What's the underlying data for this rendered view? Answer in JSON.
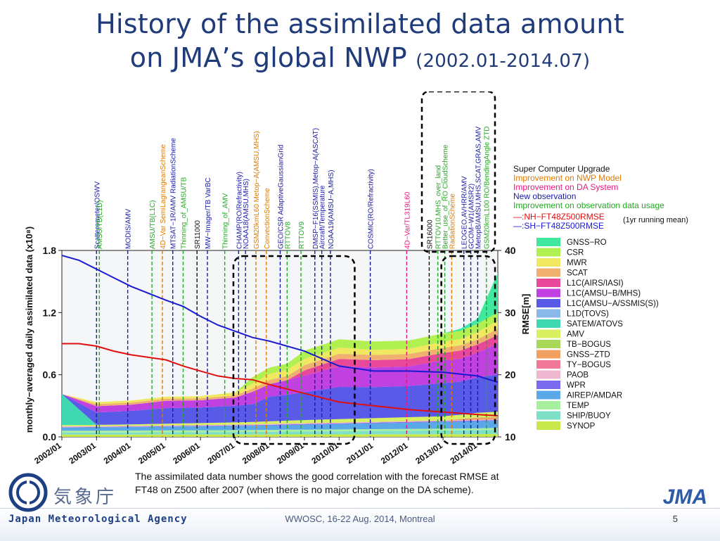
{
  "slide": {
    "title_line1": "History of the assimilated data amount",
    "title_line2": "on JMA’s global NWP",
    "title_period": "(2002.01-2014.07)",
    "caption_line1": "The assimilated data number shows the good correlation with the forecast RMSE at",
    "caption_line2": "FT48 on Z500 after 2007 (when there is no major change on the DA scheme).",
    "footer": "WWOSC, 16-22 Aug. 2014, Montreal",
    "page_number": "5",
    "agency_name": "Japan Meteorological Agency",
    "agency_kanji": "気象庁",
    "agency_short": "JMA"
  },
  "chart_data": {
    "type": "area",
    "ylabel": "monthly−averaged daily assimilated data (x10⁸)",
    "y2label": "RMSE[m]",
    "ylim": [
      0,
      1.8
    ],
    "y2lim": [
      10,
      40
    ],
    "yticks": [
      "0.0",
      "0.6",
      "1.2",
      "1.8"
    ],
    "y2ticks": [
      "10",
      "20",
      "30",
      "40"
    ],
    "xlim": [
      2002.0,
      2014.58
    ],
    "xticks": [
      {
        "x": 2002.0,
        "label": "2002/01"
      },
      {
        "x": 2003.0,
        "label": "2003/01"
      },
      {
        "x": 2004.0,
        "label": "2004/01"
      },
      {
        "x": 2005.0,
        "label": "2005/01"
      },
      {
        "x": 2006.0,
        "label": "2006/01"
      },
      {
        "x": 2007.0,
        "label": "2007/01"
      },
      {
        "x": 2008.0,
        "label": "2008/01"
      },
      {
        "x": 2009.0,
        "label": "2009/01"
      },
      {
        "x": 2010.0,
        "label": "2010/01"
      },
      {
        "x": 2011.0,
        "label": "2011/01"
      },
      {
        "x": 2012.0,
        "label": "2012/01"
      },
      {
        "x": 2013.0,
        "label": "2013/01"
      },
      {
        "x": 2014.0,
        "label": "2014/01"
      }
    ],
    "legend_top": [
      {
        "label": "Super Computer Upgrade",
        "color": "#111111"
      },
      {
        "label": "Improvement on NWP Model",
        "color": "#e07a00"
      },
      {
        "label": "Improvement on DA System",
        "color": "#e8187c"
      },
      {
        "label": "New observation",
        "color": "#1a1aa8"
      },
      {
        "label": "Improvement on observation data usage",
        "color": "#22a822"
      }
    ],
    "rmse_legend": [
      {
        "label": "—:NH−FT48Z500RMSE",
        "color": "#e01010"
      },
      {
        "label": "—:SH−FT48Z500RMSE",
        "color": "#1a1ad0"
      }
    ],
    "rmse_note": "(1yr running mean)",
    "x": [
      2002.0,
      2003.0,
      2004.0,
      2005.0,
      2006.0,
      2007.0,
      2007.5,
      2008.0,
      2008.5,
      2009.0,
      2009.5,
      2010.0,
      2011.0,
      2012.0,
      2013.0,
      2013.5,
      2014.0,
      2014.58
    ],
    "series": [
      {
        "name": "SYNOP",
        "color": "#c8e84a",
        "values": [
          0.022,
          0.022,
          0.022,
          0.023,
          0.023,
          0.023,
          0.023,
          0.023,
          0.024,
          0.024,
          0.024,
          0.024,
          0.025,
          0.025,
          0.026,
          0.026,
          0.027,
          0.028
        ]
      },
      {
        "name": "SHIP/BUOY",
        "color": "#7fe0c8",
        "values": [
          0.02,
          0.02,
          0.021,
          0.022,
          0.023,
          0.024,
          0.025,
          0.026,
          0.027,
          0.028,
          0.029,
          0.03,
          0.032,
          0.034,
          0.036,
          0.037,
          0.038,
          0.04
        ]
      },
      {
        "name": "TEMP",
        "color": "#a8f0a0",
        "values": [
          0.018,
          0.018,
          0.018,
          0.018,
          0.018,
          0.018,
          0.018,
          0.018,
          0.018,
          0.018,
          0.018,
          0.018,
          0.018,
          0.018,
          0.018,
          0.018,
          0.018,
          0.018
        ]
      },
      {
        "name": "AIREP/AMDAR",
        "color": "#5aa8e8",
        "values": [
          0.03,
          0.032,
          0.034,
          0.036,
          0.038,
          0.04,
          0.042,
          0.044,
          0.046,
          0.048,
          0.05,
          0.052,
          0.056,
          0.06,
          0.064,
          0.066,
          0.068,
          0.07
        ]
      },
      {
        "name": "WPR",
        "color": "#7a6af0",
        "values": [
          0.004,
          0.004,
          0.004,
          0.004,
          0.005,
          0.005,
          0.005,
          0.005,
          0.006,
          0.006,
          0.006,
          0.006,
          0.006,
          0.007,
          0.007,
          0.007,
          0.007,
          0.007
        ]
      },
      {
        "name": "PAOB",
        "color": "#f0b8d0",
        "values": [
          0.006,
          0.006,
          0.006,
          0.006,
          0.006,
          0.006,
          0.006,
          0.006,
          0.006,
          0.006,
          0.006,
          0.006,
          0.006,
          0.006,
          0.006,
          0.006,
          0.006,
          0.006
        ]
      },
      {
        "name": "TY−BOGUS",
        "color": "#f07898",
        "values": [
          0.002,
          0.002,
          0.002,
          0.002,
          0.002,
          0.002,
          0.002,
          0.002,
          0.002,
          0.002,
          0.002,
          0.002,
          0.002,
          0.002,
          0.002,
          0.002,
          0.002,
          0.002
        ]
      },
      {
        "name": "GNSS−ZTD",
        "color": "#f0a060",
        "values": [
          0.0,
          0.0,
          0.0,
          0.0,
          0.0,
          0.0,
          0.0,
          0.0,
          0.0,
          0.0,
          0.0,
          0.0,
          0.0,
          0.0,
          0.0,
          0.01,
          0.02,
          0.02
        ]
      },
      {
        "name": "TB−BOGUS",
        "color": "#a8d858",
        "values": [
          0.002,
          0.002,
          0.002,
          0.002,
          0.002,
          0.002,
          0.002,
          0.002,
          0.002,
          0.002,
          0.002,
          0.002,
          0.002,
          0.002,
          0.002,
          0.002,
          0.002,
          0.002
        ]
      },
      {
        "name": "AMV",
        "color": "#d8f060",
        "values": [
          0.01,
          0.01,
          0.012,
          0.015,
          0.016,
          0.02,
          0.022,
          0.024,
          0.026,
          0.028,
          0.03,
          0.032,
          0.034,
          0.036,
          0.038,
          0.04,
          0.045,
          0.05
        ]
      },
      {
        "name": "SATEM/ATOVS",
        "color": "#40d8b0",
        "values": [
          0.3,
          0.0,
          0.0,
          0.0,
          0.0,
          0.0,
          0.0,
          0.0,
          0.0,
          0.0,
          0.0,
          0.0,
          0.0,
          0.0,
          0.0,
          0.0,
          0.0,
          0.0
        ]
      },
      {
        "name": "L1D(TOVS)",
        "color": "#8ab8e8",
        "values": [
          0.0,
          0.0,
          0.0,
          0.0,
          0.0,
          0.0,
          0.0,
          0.0,
          0.0,
          0.0,
          0.0,
          0.0,
          0.0,
          0.0,
          0.0,
          0.0,
          0.0,
          0.0
        ]
      },
      {
        "name": "L1C(AMSU−A/SSMIS(S))",
        "color": "#5a5ae8",
        "values": [
          0.0,
          0.12,
          0.13,
          0.15,
          0.15,
          0.16,
          0.17,
          0.24,
          0.25,
          0.27,
          0.29,
          0.31,
          0.3,
          0.3,
          0.32,
          0.32,
          0.34,
          0.36
        ]
      },
      {
        "name": "L1C(AMSU−B/MHS)",
        "color": "#c040e0",
        "values": [
          0.0,
          0.06,
          0.06,
          0.07,
          0.07,
          0.08,
          0.12,
          0.12,
          0.14,
          0.16,
          0.18,
          0.2,
          0.19,
          0.19,
          0.22,
          0.22,
          0.24,
          0.3
        ]
      },
      {
        "name": "L1C(AIRS/IASI)",
        "color": "#e84898",
        "values": [
          0.0,
          0.0,
          0.0,
          0.0,
          0.0,
          0.0,
          0.0,
          0.0,
          0.0,
          0.05,
          0.06,
          0.07,
          0.07,
          0.07,
          0.07,
          0.08,
          0.08,
          0.08
        ]
      },
      {
        "name": "SCAT",
        "color": "#f0b070",
        "values": [
          0.0,
          0.02,
          0.02,
          0.02,
          0.02,
          0.02,
          0.03,
          0.04,
          0.04,
          0.05,
          0.05,
          0.05,
          0.05,
          0.05,
          0.05,
          0.05,
          0.05,
          0.06
        ]
      },
      {
        "name": "MWR",
        "color": "#f0e860",
        "values": [
          0.0,
          0.02,
          0.02,
          0.02,
          0.02,
          0.03,
          0.05,
          0.06,
          0.06,
          0.06,
          0.06,
          0.06,
          0.05,
          0.05,
          0.06,
          0.06,
          0.07,
          0.08
        ]
      },
      {
        "name": "CSR",
        "color": "#b0f050",
        "values": [
          0.0,
          0.0,
          0.0,
          0.0,
          0.0,
          0.0,
          0.06,
          0.06,
          0.06,
          0.08,
          0.08,
          0.08,
          0.08,
          0.08,
          0.08,
          0.08,
          0.08,
          0.08
        ]
      },
      {
        "name": "GNSS−RO",
        "color": "#40e8a0",
        "values": [
          0.0,
          0.0,
          0.0,
          0.0,
          0.0,
          0.0,
          0.0,
          0.0,
          0.0,
          0.0,
          0.0,
          0.0,
          0.0,
          0.0,
          0.0,
          0.02,
          0.05,
          0.38
        ]
      }
    ],
    "rmse_lines": [
      {
        "name": "NH−FT48Z500RMSE",
        "color": "#e01010",
        "x": [
          2002.0,
          2002.5,
          2003.0,
          2003.5,
          2004.0,
          2005.0,
          2005.5,
          2006.0,
          2006.5,
          2007.0,
          2007.5,
          2008.0,
          2009.0,
          2010.0,
          2011.0,
          2012.0,
          2013.0,
          2014.0,
          2014.58
        ],
        "values": [
          25.0,
          25.0,
          24.6,
          23.8,
          23.2,
          22.4,
          21.4,
          20.6,
          19.8,
          19.4,
          19.2,
          18.4,
          17.0,
          15.6,
          15.0,
          14.4,
          14.0,
          13.6,
          13.4
        ]
      },
      {
        "name": "SH−FT48Z500RMSE",
        "color": "#1a1ad0",
        "x": [
          2002.0,
          2002.5,
          2003.0,
          2003.5,
          2004.0,
          2005.0,
          2005.5,
          2006.0,
          2006.5,
          2007.0,
          2007.5,
          2008.0,
          2009.0,
          2010.0,
          2011.0,
          2012.0,
          2013.0,
          2014.0,
          2014.58
        ],
        "values": [
          39.2,
          38.4,
          37.0,
          35.6,
          34.2,
          32.0,
          31.0,
          29.4,
          28.0,
          27.0,
          26.0,
          25.4,
          23.8,
          21.4,
          20.6,
          20.6,
          20.4,
          19.8,
          18.8
        ]
      }
    ],
    "events": [
      {
        "x": 2003.0,
        "label": "Scatterometer/OSWV",
        "color": "#1a1aa8"
      },
      {
        "x": 2003.08,
        "label": "AMSU/TB(L1D)",
        "color": "#22a822"
      },
      {
        "x": 2003.9,
        "label": "MODIS/AMV",
        "color": "#1a1aa8"
      },
      {
        "x": 2004.6,
        "label": "AMSU/TB(L1C)",
        "color": "#22a822"
      },
      {
        "x": 2004.9,
        "label": "4D−Var  SemiLagrangeanScheme",
        "color": "#e07a00"
      },
      {
        "x": 2005.2,
        "label": "MTSAT−1R/AMV  RadiationScheme",
        "color": "#1a1aa8"
      },
      {
        "x": 2005.5,
        "label": "Thinning_of_AMSU/TB",
        "color": "#22a822"
      },
      {
        "x": 2005.9,
        "label": "SR11000",
        "color": "#111111"
      },
      {
        "x": 2006.2,
        "label": "MW−Imager/TB  VarBC",
        "color": "#1a1aa8"
      },
      {
        "x": 2006.7,
        "label": "Thinning_of_AMV",
        "color": "#22a822"
      },
      {
        "x": 2007.1,
        "label": "CHAMP(RO/Refractivity)",
        "color": "#1a1aa8"
      },
      {
        "x": 2007.3,
        "label": "NOAA18(AMSU,MHS)",
        "color": "#1a1aa8"
      },
      {
        "x": 2007.6,
        "label": "GSM20kmL60  Metop−A(AMSU,MHS)",
        "color": "#e07a00"
      },
      {
        "x": 2007.9,
        "label": "ConvectionScheme",
        "color": "#e07a00"
      },
      {
        "x": 2008.3,
        "label": "GEO/CSR  AdaptiveGaussianGrid",
        "color": "#1a1aa8"
      },
      {
        "x": 2008.5,
        "label": "RTTOV8",
        "color": "#22a822"
      },
      {
        "x": 2008.9,
        "label": "RTTOV9",
        "color": "#22a822"
      },
      {
        "x": 2009.3,
        "label": "DMSP−F16(SSMIS),Metop−A(ASCAT)",
        "color": "#1a1aa8"
      },
      {
        "x": 2009.5,
        "label": "Aircraft/Temperature",
        "color": "#1a1aa8"
      },
      {
        "x": 2009.75,
        "label": "NOAA19(AMSU−A,MHS)",
        "color": "#1a1aa8"
      },
      {
        "x": 2010.9,
        "label": "COSMIC(RO/Refractivity)",
        "color": "#1a1aa8"
      },
      {
        "x": 2011.95,
        "label": "4D−Var/TL319L60",
        "color": "#e8187c"
      },
      {
        "x": 2012.6,
        "label": "SR16000",
        "color": "#111111"
      },
      {
        "x": 2012.85,
        "label": "RTTOV10,MHS_over_land",
        "color": "#22a822"
      },
      {
        "x": 2013.05,
        "label": "Better_use_of_RO CloudScheme",
        "color": "#22a822"
      },
      {
        "x": 2013.25,
        "label": "RadiationScheme",
        "color": "#e07a00"
      },
      {
        "x": 2013.6,
        "label": "LEOGEO,AVHRR/AMV",
        "color": "#1a1aa8"
      },
      {
        "x": 2013.8,
        "label": "GCOM−W1(AMSR2)",
        "color": "#1a1aa8"
      },
      {
        "x": 2014.0,
        "label": "MetopB/AMSU,MHS,SCAT,GRAS,AMV",
        "color": "#1a1aa8"
      },
      {
        "x": 2014.25,
        "label": "GSM20kmL100 RO/BendingAngle ZTD",
        "color": "#22a822"
      }
    ]
  }
}
